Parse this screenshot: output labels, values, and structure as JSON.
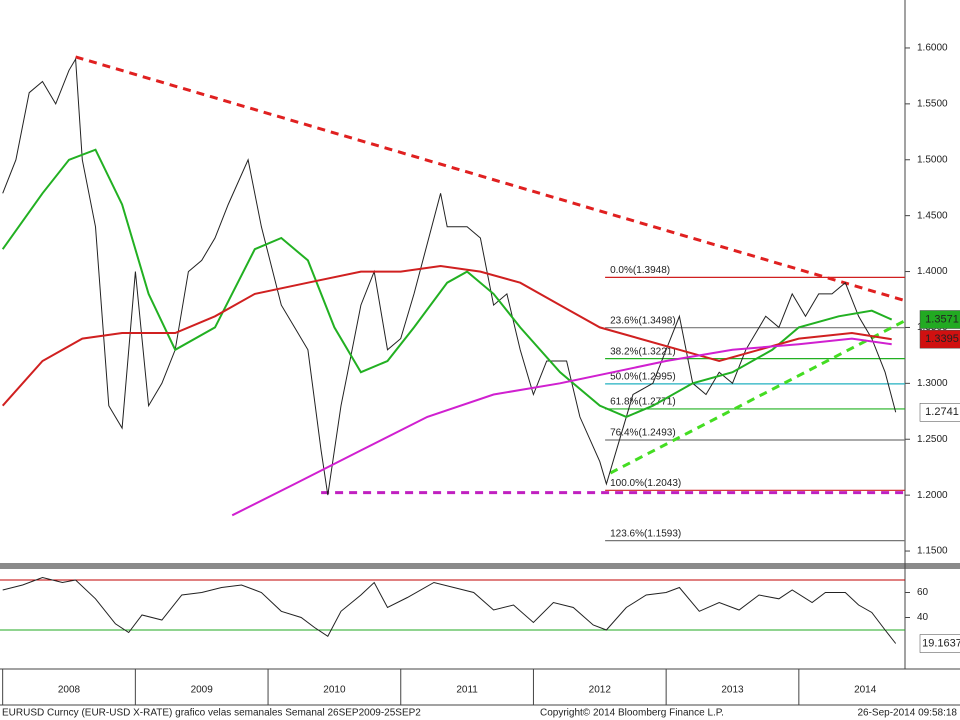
{
  "chart_data": [
    {
      "type": "line",
      "xlim": [
        2007.98,
        2014.8
      ],
      "ylim": [
        1.1393,
        1.6429
      ],
      "yticks": [
        {
          "value": 1.15,
          "label": "1.1500"
        },
        {
          "value": 1.2,
          "label": "1.2000"
        },
        {
          "value": 1.25,
          "label": "1.2500"
        },
        {
          "value": 1.3,
          "label": "1.3000"
        },
        {
          "value": 1.35,
          "label": "1.3500"
        },
        {
          "value": 1.4,
          "label": "1.4000"
        },
        {
          "value": 1.45,
          "label": "1.4500"
        },
        {
          "value": 1.5,
          "label": "1.5000"
        },
        {
          "value": 1.55,
          "label": "1.5500"
        },
        {
          "value": 1.6,
          "label": "1.6000"
        }
      ],
      "series": [
        {
          "color": "#222222",
          "x": [
            2008.0,
            2008.1,
            2008.2,
            2008.3,
            2008.4,
            2008.5,
            2008.55,
            2008.6,
            2008.7,
            2008.8,
            2008.9,
            2009.0,
            2009.1,
            2009.2,
            2009.3,
            2009.4,
            2009.5,
            2009.6,
            2009.7,
            2009.85,
            2009.95,
            2010.1,
            2010.2,
            2010.3,
            2010.4,
            2010.45,
            2010.55,
            2010.6,
            2010.7,
            2010.8,
            2010.9,
            2011.0,
            2011.1,
            2011.3,
            2011.35,
            2011.5,
            2011.6,
            2011.7,
            2011.8,
            2011.9,
            2012.0,
            2012.1,
            2012.25,
            2012.35,
            2012.5,
            2012.55,
            2012.65,
            2012.75,
            2012.9,
            2013.0,
            2013.1,
            2013.2,
            2013.3,
            2013.4,
            2013.5,
            2013.6,
            2013.75,
            2013.85,
            2013.95,
            2014.05,
            2014.15,
            2014.25,
            2014.35,
            2014.45,
            2014.55,
            2014.65,
            2014.73
          ],
          "values": [
            1.47,
            1.5,
            1.56,
            1.57,
            1.55,
            1.58,
            1.59,
            1.5,
            1.44,
            1.28,
            1.26,
            1.4,
            1.28,
            1.3,
            1.33,
            1.4,
            1.41,
            1.43,
            1.46,
            1.5,
            1.44,
            1.37,
            1.35,
            1.33,
            1.24,
            1.2,
            1.28,
            1.31,
            1.37,
            1.4,
            1.33,
            1.34,
            1.38,
            1.47,
            1.44,
            1.44,
            1.43,
            1.37,
            1.38,
            1.33,
            1.29,
            1.32,
            1.32,
            1.27,
            1.23,
            1.21,
            1.25,
            1.29,
            1.3,
            1.33,
            1.36,
            1.3,
            1.29,
            1.31,
            1.3,
            1.33,
            1.36,
            1.35,
            1.38,
            1.36,
            1.38,
            1.38,
            1.39,
            1.36,
            1.34,
            1.31,
            1.2741
          ]
        },
        {
          "color": "#22b022",
          "x": [
            2008.0,
            2008.3,
            2008.5,
            2008.7,
            2008.9,
            2009.1,
            2009.3,
            2009.6,
            2009.9,
            2010.1,
            2010.3,
            2010.5,
            2010.7,
            2010.9,
            2011.1,
            2011.35,
            2011.5,
            2011.7,
            2011.9,
            2012.2,
            2012.5,
            2012.7,
            2012.9,
            2013.2,
            2013.5,
            2013.8,
            2014.0,
            2014.3,
            2014.55,
            2014.7
          ],
          "values": [
            1.42,
            1.47,
            1.5,
            1.509,
            1.46,
            1.38,
            1.33,
            1.35,
            1.42,
            1.43,
            1.41,
            1.35,
            1.31,
            1.32,
            1.35,
            1.39,
            1.4,
            1.38,
            1.35,
            1.31,
            1.28,
            1.27,
            1.28,
            1.3,
            1.31,
            1.33,
            1.35,
            1.36,
            1.365,
            1.357
          ]
        },
        {
          "color": "#d02020",
          "x": [
            2008.0,
            2008.3,
            2008.6,
            2008.9,
            2009.3,
            2009.6,
            2009.9,
            2010.3,
            2010.7,
            2011.0,
            2011.3,
            2011.6,
            2011.9,
            2012.2,
            2012.5,
            2012.8,
            2013.1,
            2013.4,
            2013.7,
            2014.0,
            2014.4,
            2014.7
          ],
          "values": [
            1.28,
            1.32,
            1.34,
            1.345,
            1.345,
            1.36,
            1.38,
            1.39,
            1.4,
            1.4,
            1.405,
            1.4,
            1.39,
            1.37,
            1.35,
            1.34,
            1.33,
            1.32,
            1.33,
            1.34,
            1.345,
            1.3395
          ]
        },
        {
          "color": "#d020d0",
          "x": [
            2009.73,
            2010.2,
            2010.7,
            2011.2,
            2011.7,
            2012.2,
            2012.6,
            2013.0,
            2013.5,
            2014.0,
            2014.4,
            2014.7
          ],
          "values": [
            1.182,
            1.21,
            1.24,
            1.27,
            1.29,
            1.3,
            1.31,
            1.32,
            1.33,
            1.335,
            1.34,
            1.335
          ]
        }
      ],
      "trendlines": [
        {
          "color": "#e02020",
          "x": [
            2008.55,
            2014.8
          ],
          "values": [
            1.592,
            1.374
          ]
        },
        {
          "color": "#44dd22",
          "x": [
            2012.58,
            2014.8
          ],
          "values": [
            1.2198,
            1.356
          ]
        },
        {
          "color": "#c020c0",
          "x": [
            2010.4,
            2014.8
          ],
          "values": [
            1.2023,
            1.2023
          ]
        }
      ],
      "fib_start": 2012.54,
      "fib_levels": [
        {
          "label": "0.0%(1.3948)",
          "value": 1.3948,
          "color": "#d02020"
        },
        {
          "label": "23.6%(1.3498)",
          "value": 1.3498,
          "color": "#777777"
        },
        {
          "label": "38.2%(1.3221)",
          "value": 1.3221,
          "color": "#22b022"
        },
        {
          "label": "50.0%(1.2995)",
          "value": 1.2995,
          "color": "#22b0c0"
        },
        {
          "label": "61.8%(1.2771)",
          "value": 1.2771,
          "color": "#22b022"
        },
        {
          "label": "76.4%(1.2493)",
          "value": 1.2493,
          "color": "#777777"
        },
        {
          "label": "100.0%(1.2043)",
          "value": 1.2043,
          "color": "#d02020"
        },
        {
          "label": "123.6%(1.1593)",
          "value": 1.1593,
          "color": "#777777"
        }
      ],
      "markers": [
        {
          "value": 1.3571,
          "color": "#22aa22"
        },
        {
          "value": 1.3395,
          "color": "#d01010"
        },
        {
          "value": 1.2741,
          "color": "#ffffff"
        }
      ]
    },
    {
      "type": "line",
      "xlim": [
        2007.98,
        2014.8
      ],
      "ylim": [
        0.4,
        80.4
      ],
      "yticks": [
        40,
        60
      ],
      "bands": [
        {
          "value": 70,
          "color": "#c00000"
        },
        {
          "value": 30,
          "color": "#22aa22"
        }
      ],
      "series": [
        {
          "color": "#222222",
          "x": [
            2008.0,
            2008.15,
            2008.3,
            2008.45,
            2008.55,
            2008.7,
            2008.85,
            2008.95,
            2009.05,
            2009.2,
            2009.35,
            2009.5,
            2009.65,
            2009.8,
            2009.95,
            2010.1,
            2010.25,
            2010.35,
            2010.45,
            2010.55,
            2010.7,
            2010.8,
            2010.9,
            2011.05,
            2011.25,
            2011.4,
            2011.55,
            2011.7,
            2011.85,
            2012.0,
            2012.15,
            2012.3,
            2012.45,
            2012.55,
            2012.7,
            2012.85,
            2013.0,
            2013.1,
            2013.25,
            2013.4,
            2013.55,
            2013.7,
            2013.85,
            2013.95,
            2014.1,
            2014.2,
            2014.35,
            2014.45,
            2014.55,
            2014.65,
            2014.73
          ],
          "values": [
            62,
            66,
            72,
            68,
            70,
            55,
            35,
            28,
            42,
            38,
            58,
            60,
            64,
            66,
            60,
            45,
            40,
            32,
            25,
            45,
            58,
            68,
            48,
            56,
            68,
            64,
            60,
            46,
            50,
            36,
            52,
            48,
            34,
            30,
            48,
            58,
            60,
            64,
            45,
            52,
            46,
            58,
            55,
            62,
            52,
            60,
            60,
            50,
            44,
            30,
            19.1637
          ]
        }
      ],
      "markers": [
        {
          "value": 19.1637,
          "color": "#ffffff"
        }
      ],
      "xticks": [
        {
          "value": 2008.5,
          "label": "2008"
        },
        {
          "value": 2009.5,
          "label": "2009"
        },
        {
          "value": 2010.5,
          "label": "2010"
        },
        {
          "value": 2011.5,
          "label": "2011"
        },
        {
          "value": 2012.5,
          "label": "2012"
        },
        {
          "value": 2013.5,
          "label": "2013"
        },
        {
          "value": 2014.5,
          "label": "2014"
        }
      ],
      "year_bounds": [
        2008,
        2009,
        2010,
        2011,
        2012,
        2013,
        2014
      ]
    }
  ],
  "footer": {
    "left": "EURUSD Curncy (EUR-USD X-RATE) grafico velas semanales  Semanal 26SEP2009-25SEP2",
    "center": "Copyright© 2014 Bloomberg Finance L.P.",
    "right": "26-Sep-2014 09:58:18"
  }
}
